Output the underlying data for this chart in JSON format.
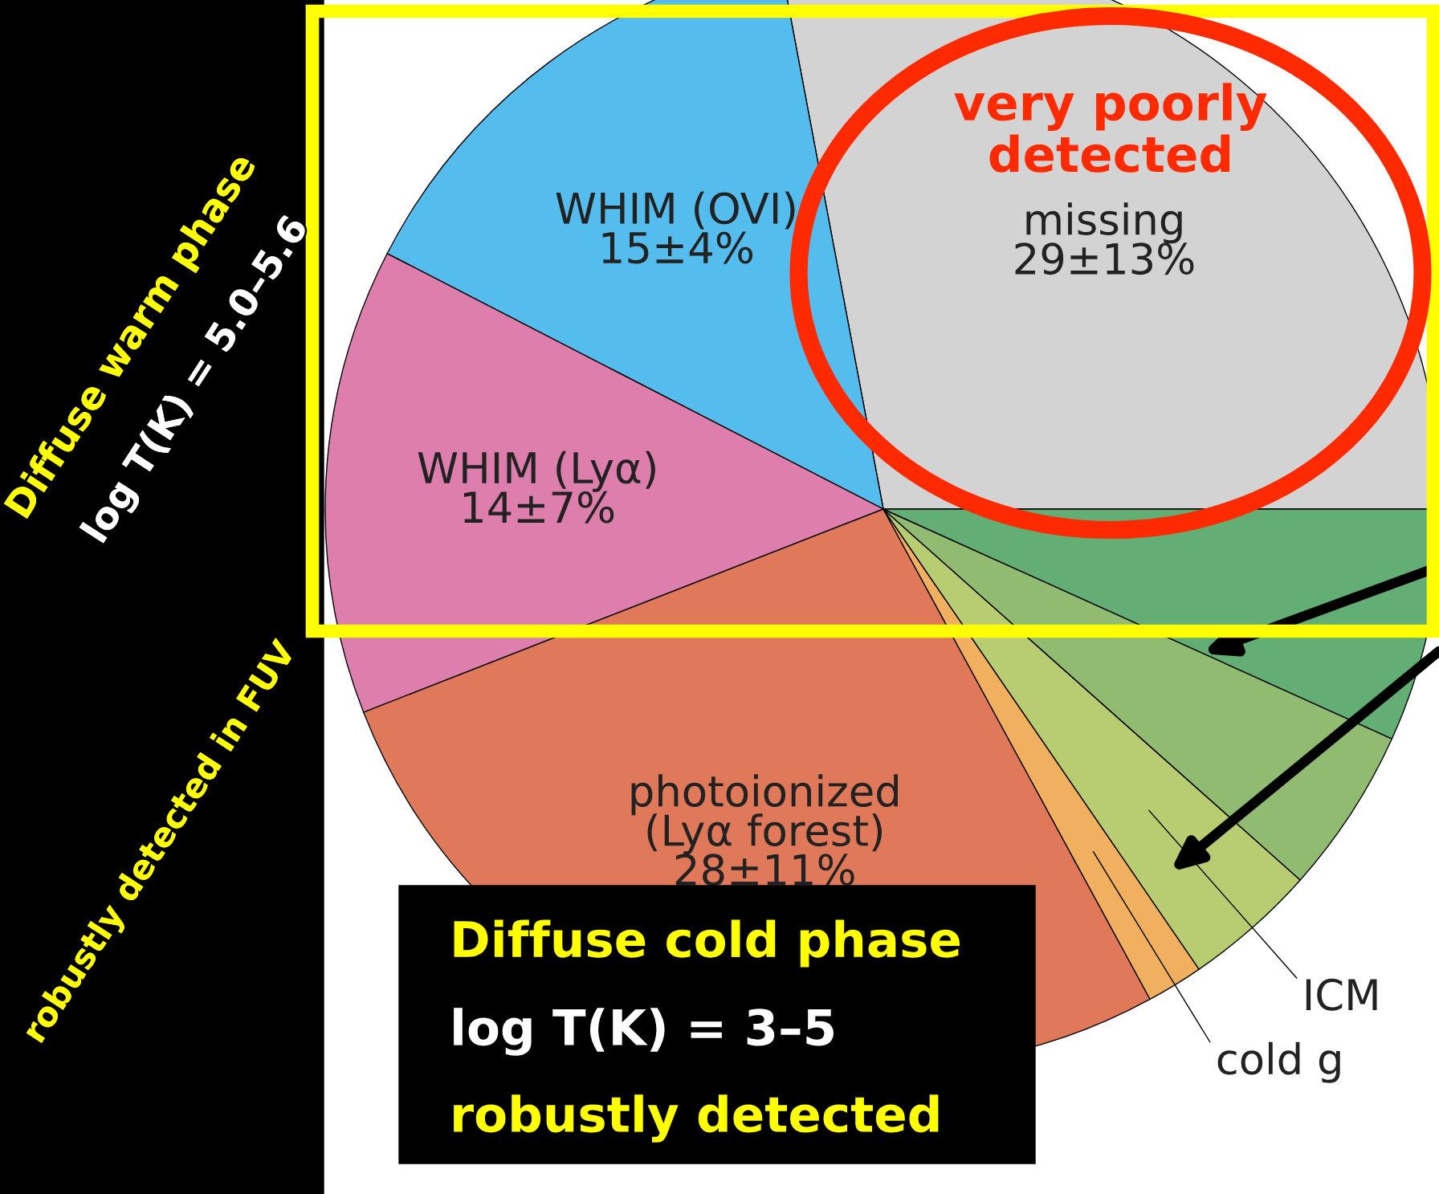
{
  "chart_data": {
    "type": "pie",
    "categories": [
      "missing",
      "WHIM (OVI)",
      "WHIM (Lyα)",
      "photoionized\n(Lyα forest)",
      "cold g",
      "ICM",
      null,
      null
    ],
    "values": [
      29,
      15,
      14,
      28,
      1.7,
      4,
      5,
      7
    ],
    "colors": [
      "#d3d3d3",
      "#55bdee",
      "#dd7eac",
      "#e0785a",
      "#f0b060",
      "#b8cc72",
      "#90bb70",
      "#62ae74"
    ],
    "value_labels": [
      "29±13%",
      "15±4%",
      "14±7%",
      "28±11%",
      null,
      null,
      null,
      null
    ],
    "annotations": [
      "very poorly\ndetected",
      "Diffuse warm phase",
      "log T(K) = 5.0–5.6",
      "robustly detected in FUV",
      "Diffuse cold phase",
      "log T(K) = 3–5",
      "robustly detected"
    ]
  }
}
